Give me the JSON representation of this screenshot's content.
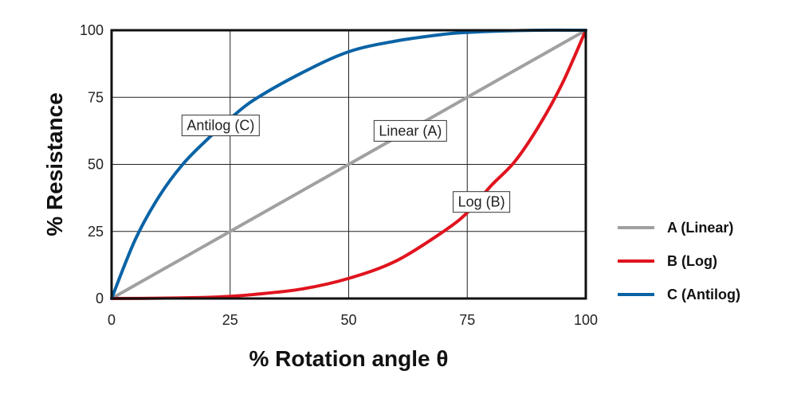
{
  "chart_data": {
    "type": "line",
    "xlabel": "% Rotation angle θ",
    "ylabel": "% Resistance",
    "xlim": [
      0,
      100
    ],
    "ylim": [
      0,
      100
    ],
    "xticks": [
      "0",
      "25",
      "50",
      "75",
      "100"
    ],
    "yticks": [
      "0",
      "25",
      "50",
      "75",
      "100"
    ],
    "grid": true,
    "legend_position": "right",
    "series": [
      {
        "name": "A (Linear)",
        "color": "#a0a0a0",
        "x": [
          0,
          10,
          20,
          30,
          40,
          50,
          60,
          70,
          80,
          90,
          100
        ],
        "y": [
          0,
          10,
          20,
          30,
          40,
          50,
          60,
          70,
          80,
          90,
          100
        ]
      },
      {
        "name": "B (Log)",
        "color": "#e0141e",
        "x": [
          0,
          10,
          20,
          25,
          30,
          40,
          50,
          60,
          70,
          75,
          80,
          85,
          90,
          95,
          100
        ],
        "y": [
          0,
          0.1,
          0.4,
          0.8,
          1.5,
          3.5,
          7.5,
          14,
          25,
          32,
          42,
          51,
          64,
          80,
          100
        ]
      },
      {
        "name": "C (Antilog)",
        "color": "#0a63a5",
        "x": [
          0,
          5,
          10,
          15,
          20,
          25,
          30,
          40,
          50,
          60,
          70,
          75,
          80,
          90,
          100
        ],
        "y": [
          0,
          22,
          38,
          50,
          59,
          67,
          74,
          84,
          92,
          96,
          98.5,
          99.2,
          99.6,
          100,
          100
        ]
      }
    ],
    "annotations": [
      {
        "text": "Antilog (C)",
        "x": 23,
        "y": 64.5
      },
      {
        "text": "Linear (A)",
        "x": 63,
        "y": 62.5
      },
      {
        "text": "Log (B)",
        "x": 78,
        "y": 36
      }
    ]
  }
}
